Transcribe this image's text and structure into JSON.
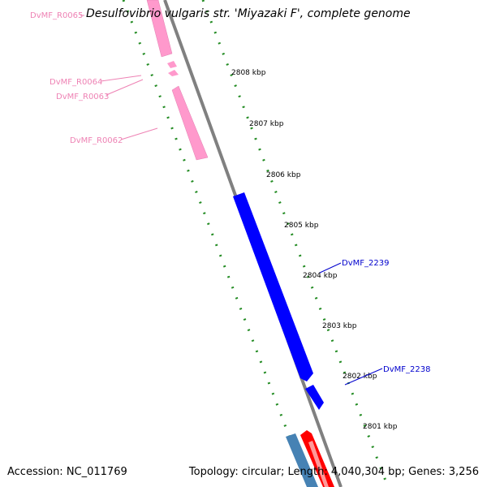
{
  "header": {
    "organism": "Desulfovibrio vulgaris str. 'Miyazaki F', complete genome"
  },
  "footer": {
    "accession": "Accession: NC_011769",
    "summary": "Topology: circular; Length: 4,040,304 bp; Genes: 3,256"
  },
  "ticks": [
    "2808 kbp",
    "2807 kbp",
    "2806 kbp",
    "2805 kbp",
    "2804 kbp",
    "2803 kbp",
    "2802 kbp",
    "2801 kbp"
  ],
  "genes": {
    "r0065": "DvMF_R0065",
    "r0064": "DvMF_R0064",
    "r0063": "DvMF_R0063",
    "r0062": "DvMF_R0062",
    "g2239": "DvMF_2239",
    "g2238": "DvMF_2238"
  },
  "colors": {
    "rna": "#ff99cc",
    "rna_label": "#ee82b4",
    "cds_forward": "#0000ff",
    "cds_other": "#4682b4",
    "cds_red": "#ff0000",
    "backbone": "#808080",
    "tick": "#228b22"
  }
}
